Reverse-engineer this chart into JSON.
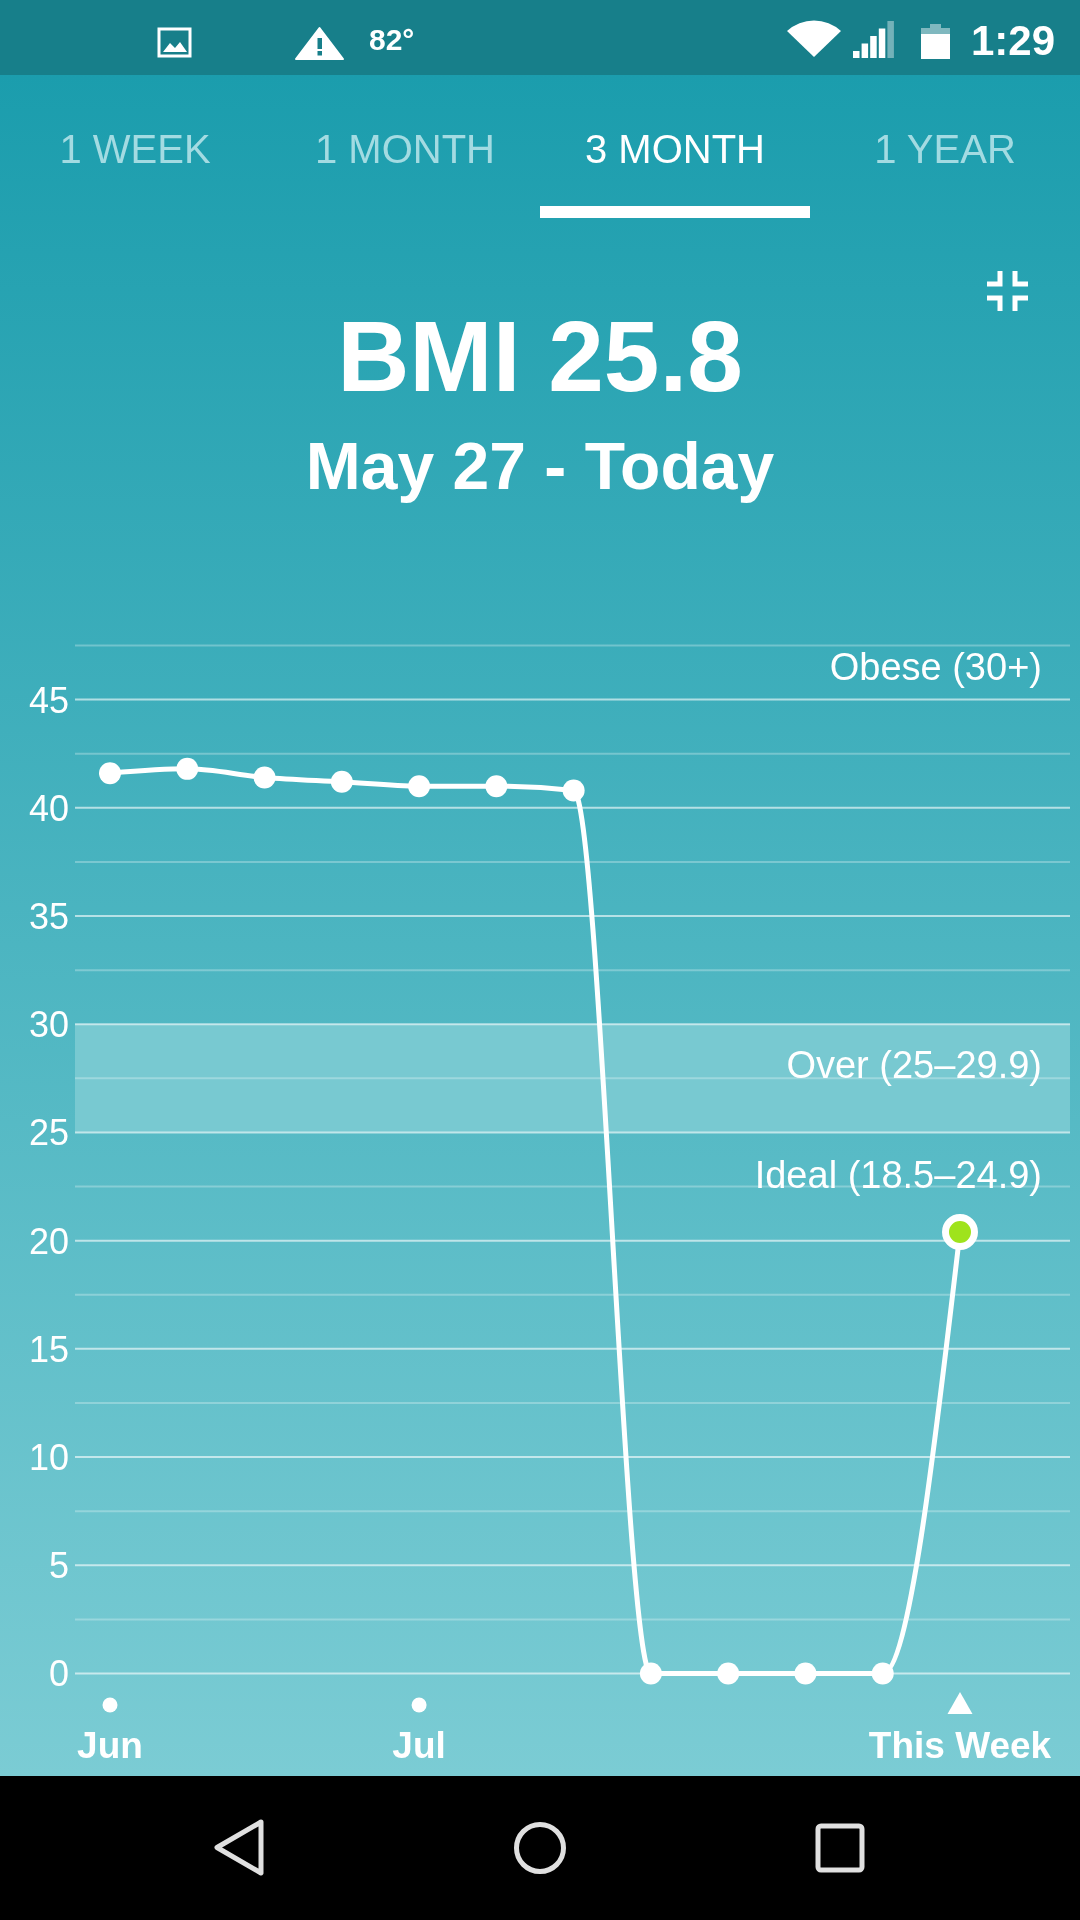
{
  "chart_data": {
    "type": "line",
    "title": "BMI 25.8",
    "subtitle": "May 27 - Today",
    "categories": [
      "Jun",
      null,
      null,
      null,
      "Jul",
      null,
      null,
      null,
      null,
      null,
      null,
      "This Week"
    ],
    "series": [
      {
        "color": "#ffffff",
        "colors": [
          "#ffffff",
          "#ffffff",
          "#ffffff",
          "#ffffff",
          "#ffffff",
          "#ffffff",
          "#ffffff",
          "#ffffff",
          "#ffffff",
          "#ffffff",
          "#ffffff",
          "#9fe31c"
        ],
        "values": [
          41.6,
          41.8,
          41.4,
          41.2,
          41.0,
          41.0,
          40.8,
          0,
          0,
          0,
          0,
          20.4
        ]
      }
    ],
    "ylim": [
      0,
      47.5
    ],
    "yticks": [
      0,
      {
        "value": 2.5,
        "label": null
      },
      5,
      {
        "value": 7.5,
        "label": null
      },
      10,
      {
        "value": 12.5,
        "label": null
      },
      15,
      {
        "value": 17.5,
        "label": null
      },
      20,
      {
        "value": 22.5,
        "label": null
      },
      25,
      {
        "value": 27.5,
        "label": null
      },
      30,
      {
        "value": 32.5,
        "label": null
      },
      35,
      {
        "value": 37.5,
        "label": null
      },
      40,
      {
        "value": 42.5,
        "label": null
      },
      45,
      {
        "value": 47.5,
        "label": null
      }
    ],
    "grid": "y",
    "marker": "circle",
    "bands": [
      {
        "axis": "y",
        "from": 25,
        "to": 30,
        "label": "Over (25–29.9)",
        "color": "#78c9d1"
      }
    ],
    "annotations": [
      "82°",
      "1:29",
      "1 WEEK",
      "1 MONTH",
      "3 MONTH",
      "1 YEAR",
      "Obese (30+)",
      "Ideal (18.5–24.9)"
    ]
  }
}
